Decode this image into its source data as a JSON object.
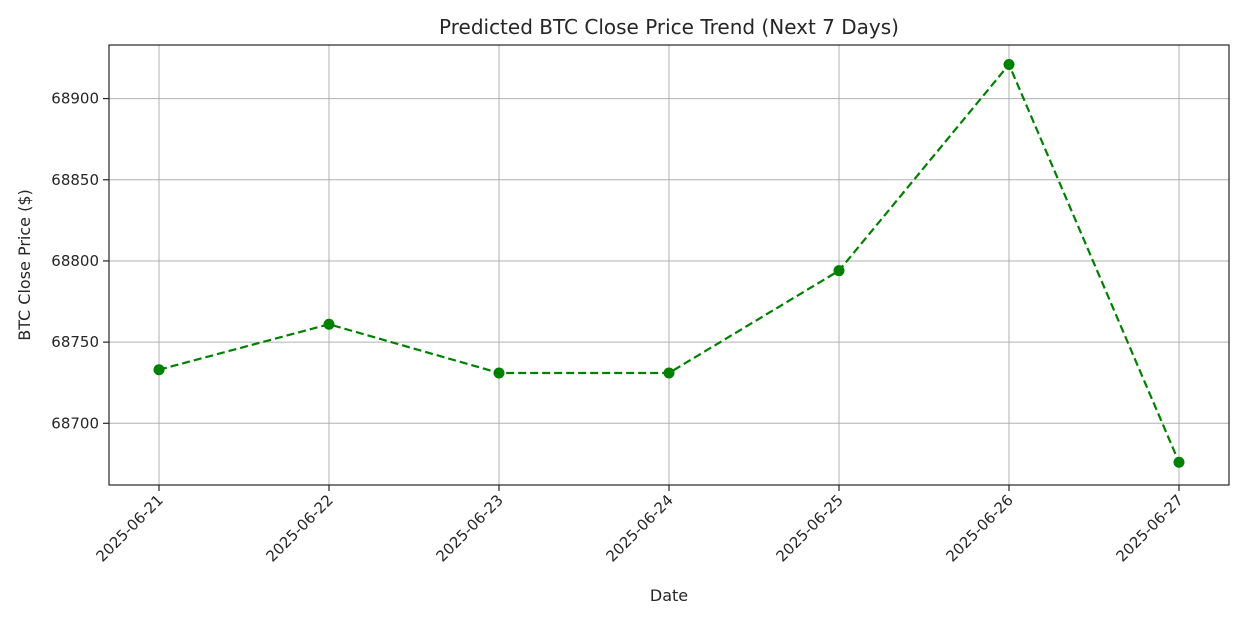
{
  "chart_data": {
    "type": "line",
    "title": "Predicted BTC Close Price Trend (Next 7 Days)",
    "xlabel": "Date",
    "ylabel": "BTC Close Price ($)",
    "categories": [
      "2025-06-21",
      "2025-06-22",
      "2025-06-23",
      "2025-06-24",
      "2025-06-25",
      "2025-06-26",
      "2025-06-27"
    ],
    "series": [
      {
        "values": [
          68733,
          68761,
          68731,
          68731,
          68794,
          68921,
          68676
        ],
        "color": "#008000",
        "line_style": "dashed",
        "marker": "circle"
      }
    ],
    "ylim": [
      68662,
      68933
    ],
    "yticks": [
      68700,
      68750,
      68800,
      68850,
      68900
    ],
    "grid": true
  }
}
